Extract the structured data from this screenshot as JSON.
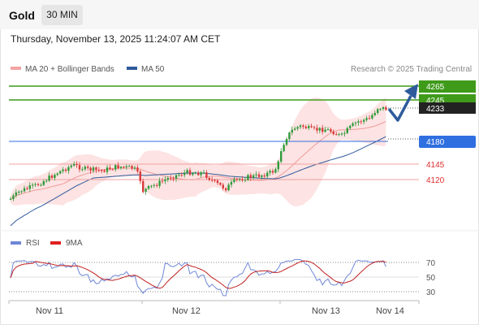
{
  "header": {
    "symbol": "Gold",
    "timeframe": "30 MIN",
    "datetime": "Thursday, November 13, 2025 11:24:07 AM CET"
  },
  "legend": {
    "items": [
      {
        "label": "MA 20 + Bollinger Bands",
        "color": "#f4a3a3"
      },
      {
        "label": "MA 50",
        "color": "#2f5b9c"
      }
    ],
    "credit": "Research © 2025 Trading Central"
  },
  "levels": [
    {
      "value": "4265",
      "kind": "resistance",
      "color": "#3f9a1a"
    },
    {
      "value": "4245",
      "kind": "resistance",
      "color": "#3f9a1a"
    },
    {
      "value": "4233",
      "kind": "last-price",
      "color": "#222222"
    },
    {
      "value": "4180",
      "kind": "pivot",
      "color": "#2f6fe0"
    },
    {
      "value": "4145",
      "kind": "support",
      "color": "#e03030"
    },
    {
      "value": "4120",
      "kind": "support",
      "color": "#e03030"
    }
  ],
  "rsi": {
    "legend": [
      {
        "label": "RSI",
        "color": "#6e86d8"
      },
      {
        "label": "9MA",
        "color": "#e02020"
      }
    ],
    "ticks": [
      "70",
      "50",
      "30"
    ]
  },
  "x_axis": {
    "labels": [
      "Nov 11",
      "Nov 12",
      "Nov 13",
      "Nov 14"
    ]
  },
  "colors": {
    "up_candle": "#2f9a3a",
    "down_candle": "#d83a3a",
    "bollinger_fill": "#fde3e3",
    "ma20": "#f29a9a",
    "ma50": "#2f5b9c",
    "arrow": "#2f5b9c"
  }
}
